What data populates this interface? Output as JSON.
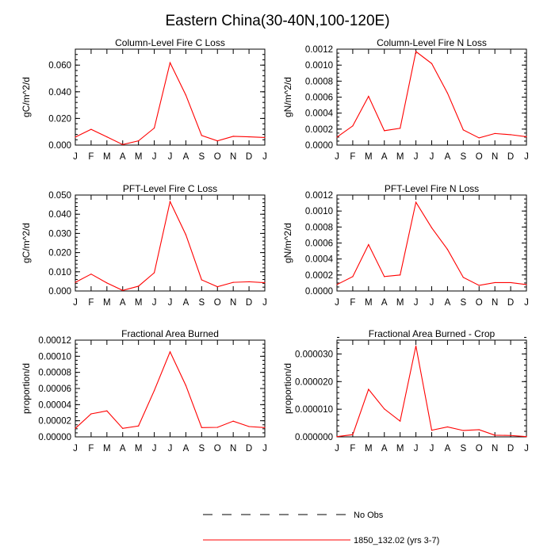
{
  "title": "Eastern China(30-40N,100-120E)",
  "month_labels": [
    "J",
    "F",
    "M",
    "A",
    "M",
    "J",
    "J",
    "A",
    "S",
    "O",
    "N",
    "D",
    "J"
  ],
  "series_color": "#ff0000",
  "obs_color": "#000000",
  "legend": [
    {
      "label": "No Obs",
      "style": "dashed",
      "color": "#000000"
    },
    {
      "label": "1850_132.02 (yrs 3-7)",
      "style": "solid",
      "color": "#ff0000"
    }
  ],
  "chart_data": [
    {
      "type": "line",
      "title": "Column-Level Fire C Loss",
      "ylabel": "gC/m^2/d",
      "ylim": [
        0,
        0.072
      ],
      "yticks": [
        0,
        0.02,
        0.04,
        0.06
      ],
      "ytick_labels": [
        "0.000",
        "0.020",
        "0.040",
        "0.060"
      ],
      "yminor_step": 0.004,
      "x": [
        "J",
        "F",
        "M",
        "A",
        "M",
        "J",
        "J",
        "A",
        "S",
        "O",
        "N",
        "D",
        "J"
      ],
      "series": [
        {
          "values": [
            0.006,
            0.0118,
            0.0062,
            0.0004,
            0.0032,
            0.0128,
            0.0618,
            0.0375,
            0.0072,
            0.0032,
            0.0066,
            0.0062,
            0.0057
          ]
        }
      ]
    },
    {
      "type": "line",
      "title": "Column-Level Fire N Loss",
      "ylabel": "gN/m^2/d",
      "ylim": [
        0,
        0.0012
      ],
      "yticks": [
        0,
        0.0002,
        0.0004,
        0.0006,
        0.0008,
        0.001,
        0.0012
      ],
      "ytick_labels": [
        "0.0000",
        "0.0002",
        "0.0004",
        "0.0006",
        "0.0008",
        "0.0010",
        "0.0012"
      ],
      "yminor_step": 5e-05,
      "x": [
        "J",
        "F",
        "M",
        "A",
        "M",
        "J",
        "J",
        "A",
        "S",
        "O",
        "N",
        "D",
        "J"
      ],
      "series": [
        {
          "values": [
            0.0001,
            0.00024,
            0.00061,
            0.00018,
            0.00021,
            0.00117,
            0.00102,
            0.00065,
            0.00019,
            9e-05,
            0.000145,
            0.00013,
            0.000105
          ]
        }
      ]
    },
    {
      "type": "line",
      "title": "PFT-Level Fire C Loss",
      "ylabel": "gC/m^2/d",
      "ylim": [
        0,
        0.05
      ],
      "yticks": [
        0,
        0.01,
        0.02,
        0.03,
        0.04,
        0.05
      ],
      "ytick_labels": [
        "0.000",
        "0.010",
        "0.020",
        "0.030",
        "0.040",
        "0.050"
      ],
      "yminor_step": 0.002,
      "x": [
        "J",
        "F",
        "M",
        "A",
        "M",
        "J",
        "J",
        "A",
        "S",
        "O",
        "N",
        "D",
        "J"
      ],
      "series": [
        {
          "values": [
            0.0045,
            0.0088,
            0.0042,
            0.0003,
            0.0025,
            0.0095,
            0.0466,
            0.0293,
            0.0058,
            0.0022,
            0.0045,
            0.0048,
            0.0043
          ]
        }
      ]
    },
    {
      "type": "line",
      "title": "PFT-Level Fire N Loss",
      "ylabel": "gN/m^2/d",
      "ylim": [
        0,
        0.0012
      ],
      "yticks": [
        0,
        0.0002,
        0.0004,
        0.0006,
        0.0008,
        0.001,
        0.0012
      ],
      "ytick_labels": [
        "0.0000",
        "0.0002",
        "0.0004",
        "0.0006",
        "0.0008",
        "0.0010",
        "0.0012"
      ],
      "yminor_step": 5e-05,
      "x": [
        "J",
        "F",
        "M",
        "A",
        "M",
        "J",
        "J",
        "A",
        "S",
        "O",
        "N",
        "D",
        "J"
      ],
      "series": [
        {
          "values": [
            8e-05,
            0.00018,
            0.00058,
            0.00018,
            0.0002,
            0.00111,
            0.00079,
            0.00052,
            0.00017,
            7e-05,
            0.000105,
            0.000105,
            8e-05
          ]
        }
      ]
    },
    {
      "type": "line",
      "title": "Fractional Area Burned",
      "ylabel": "proportion/d",
      "ylim": [
        0,
        0.00012
      ],
      "yticks": [
        0,
        2e-05,
        4e-05,
        6e-05,
        8e-05,
        0.0001,
        0.00012
      ],
      "ytick_labels": [
        "0.00000",
        "0.00002",
        "0.00004",
        "0.00006",
        "0.00008",
        "0.00010",
        "0.00012"
      ],
      "yminor_step": 5e-06,
      "x": [
        "J",
        "F",
        "M",
        "A",
        "M",
        "J",
        "J",
        "A",
        "S",
        "O",
        "N",
        "D",
        "J"
      ],
      "series": [
        {
          "values": [
            1.05e-05,
            2.85e-05,
            3.22e-05,
            1.05e-05,
            1.35e-05,
            5.75e-05,
            0.0001055,
            6.37e-05,
            1.15e-05,
            1.18e-05,
            1.95e-05,
            1.28e-05,
            1.15e-05
          ]
        }
      ]
    },
    {
      "type": "line",
      "title": "Fractional Area Burned - Crop",
      "ylabel": "proportion/d",
      "ylim": [
        0,
        3.5e-05
      ],
      "yticks": [
        0,
        1e-05,
        2e-05,
        3e-05
      ],
      "ytick_labels": [
        "0.000000",
        "0.000010",
        "0.000020",
        "0.000030"
      ],
      "yminor_step": 2e-06,
      "x": [
        "J",
        "F",
        "M",
        "A",
        "M",
        "J",
        "J",
        "A",
        "S",
        "O",
        "N",
        "D",
        "J"
      ],
      "series": [
        {
          "values": [
            1e-07,
            8e-07,
            1.72e-05,
            1.01e-05,
            5.7e-06,
            3.29e-05,
            2.4e-06,
            3.6e-06,
            2.3e-06,
            2.6e-06,
            6e-07,
            5e-07,
            1e-07
          ]
        }
      ]
    }
  ]
}
